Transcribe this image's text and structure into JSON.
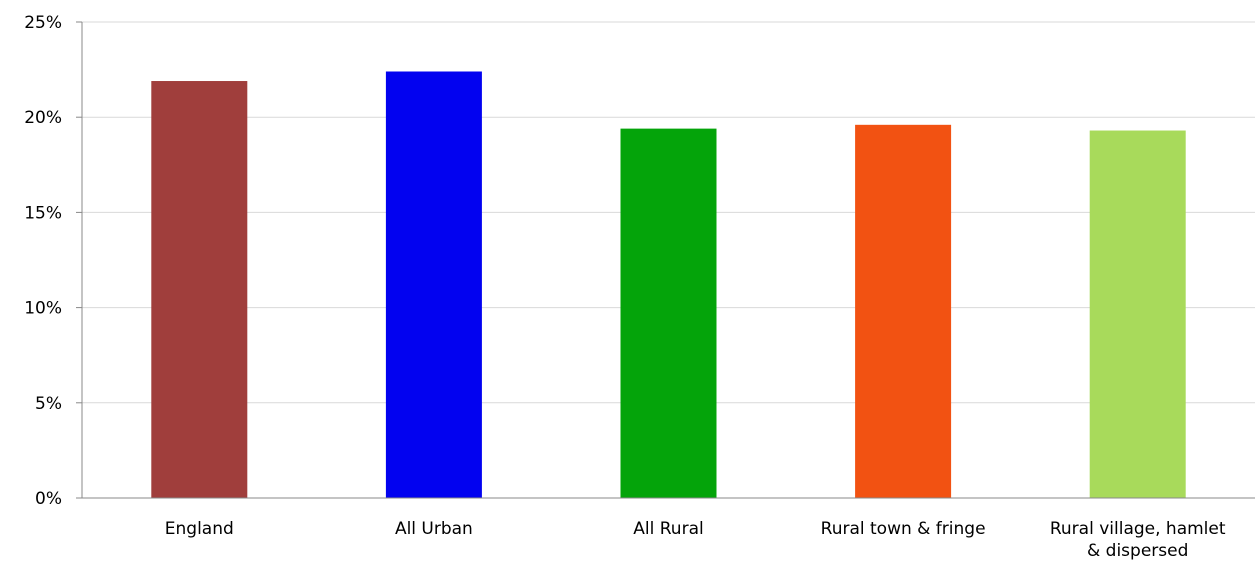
{
  "chart_data": {
    "type": "bar",
    "title": "",
    "xlabel": "",
    "ylabel": "",
    "categories": [
      "England",
      "All Urban",
      "All Rural",
      "Rural town & fringe",
      "Rural village, hamlet & dispersed"
    ],
    "values": [
      21.9,
      22.4,
      19.4,
      19.6,
      19.3
    ],
    "bar_colors": [
      "#a03e3c",
      "#0202f0",
      "#04a40a",
      "#f25212",
      "#a8da5b"
    ],
    "ylim": [
      0,
      25
    ],
    "yticks": [
      {
        "value": 0,
        "label": "0%"
      },
      {
        "value": 5,
        "label": "5%"
      },
      {
        "value": 10,
        "label": "10%"
      },
      {
        "value": 15,
        "label": "15%"
      },
      {
        "value": 20,
        "label": "20%"
      },
      {
        "value": 25,
        "label": "25%"
      }
    ],
    "grid": true,
    "legend": "none",
    "gridline_color": "#d9d9d9",
    "axis_color": "#888888"
  }
}
